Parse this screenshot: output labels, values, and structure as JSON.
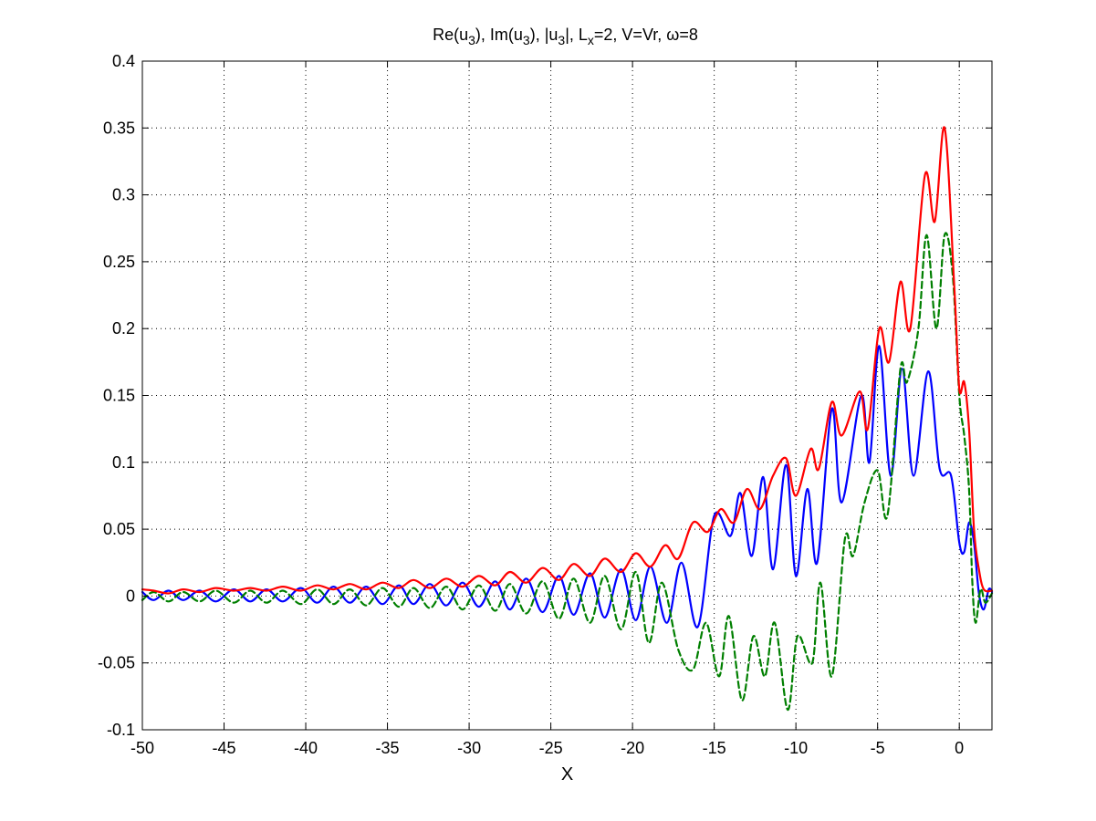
{
  "chart_data": {
    "type": "line",
    "title": {
      "parts": [
        {
          "t": "Re(u"
        },
        {
          "t": "3",
          "sub": true
        },
        {
          "t": "), Im(u"
        },
        {
          "t": "3",
          "sub": true
        },
        {
          "t": "), |u"
        },
        {
          "t": "3",
          "sub": true
        },
        {
          "t": "|, L"
        },
        {
          "t": "x",
          "sub": true
        },
        {
          "t": "=2,  V=Vr, ω=8"
        }
      ]
    },
    "xlabel": "X",
    "ylabel": "",
    "xlim": [
      -50,
      2
    ],
    "ylim": [
      -0.1,
      0.4
    ],
    "grid": true,
    "x_ticks": [
      -50,
      -45,
      -40,
      -35,
      -30,
      -25,
      -20,
      -15,
      -10,
      -5,
      0
    ],
    "x_tick_labels": [
      "-50",
      "-45",
      "-40",
      "-35",
      "-30",
      "-25",
      "-20",
      "-15",
      "-10",
      "-5",
      "0"
    ],
    "y_ticks": [
      -0.1,
      -0.05,
      0,
      0.05,
      0.1,
      0.15,
      0.2,
      0.25,
      0.3,
      0.35,
      0.4
    ],
    "y_tick_labels": [
      "-0.1",
      "-0.05",
      "0",
      "0.05",
      "0.1",
      "0.15",
      "0.2",
      "0.25",
      "0.3",
      "0.35",
      "0.4"
    ],
    "series": [
      {
        "color": "#0000ff",
        "style": "solid",
        "points": [
          [
            -50,
            0.003
          ],
          [
            -49.3,
            -0.003
          ],
          [
            -48.4,
            0.004
          ],
          [
            -47.5,
            -0.003
          ],
          [
            -46.5,
            0.004
          ],
          [
            -45.5,
            -0.004
          ],
          [
            -44.4,
            0.005
          ],
          [
            -43.4,
            -0.004
          ],
          [
            -42.4,
            0.005
          ],
          [
            -41.4,
            -0.004
          ],
          [
            -40.3,
            0.006
          ],
          [
            -39.3,
            -0.005
          ],
          [
            -38.3,
            0.007
          ],
          [
            -37.3,
            -0.005
          ],
          [
            -36.3,
            0.007
          ],
          [
            -35.3,
            -0.006
          ],
          [
            -34.3,
            0.008
          ],
          [
            -33.4,
            -0.006
          ],
          [
            -32.4,
            0.009
          ],
          [
            -31.4,
            -0.007
          ],
          [
            -30.4,
            0.01
          ],
          [
            -29.4,
            -0.008
          ],
          [
            -28.4,
            0.011
          ],
          [
            -27.5,
            -0.01
          ],
          [
            -26.5,
            0.013
          ],
          [
            -25.5,
            -0.012
          ],
          [
            -24.5,
            0.015
          ],
          [
            -23.6,
            -0.014
          ],
          [
            -22.6,
            0.017
          ],
          [
            -21.7,
            -0.016
          ],
          [
            -20.7,
            0.02
          ],
          [
            -19.8,
            -0.018
          ],
          [
            -18.9,
            0.022
          ],
          [
            -17.9,
            -0.02
          ],
          [
            -17.0,
            0.025
          ],
          [
            -16.0,
            -0.023
          ],
          [
            -15.0,
            0.06
          ],
          [
            -14.0,
            0.045
          ],
          [
            -13.4,
            0.077
          ],
          [
            -12.7,
            0.03
          ],
          [
            -12.0,
            0.089
          ],
          [
            -11.4,
            0.02
          ],
          [
            -10.6,
            0.098
          ],
          [
            -10.0,
            0.015
          ],
          [
            -9.3,
            0.08
          ],
          [
            -8.7,
            0.025
          ],
          [
            -7.8,
            0.14
          ],
          [
            -7.2,
            0.07
          ],
          [
            -6.0,
            0.15
          ],
          [
            -5.5,
            0.1
          ],
          [
            -4.9,
            0.187
          ],
          [
            -4.2,
            0.09
          ],
          [
            -3.5,
            0.17
          ],
          [
            -2.8,
            0.09
          ],
          [
            -1.9,
            0.168
          ],
          [
            -1.2,
            0.095
          ],
          [
            -0.5,
            0.09
          ],
          [
            0,
            0.04
          ],
          [
            0.3,
            0.033
          ],
          [
            0.6,
            0.055
          ],
          [
            0.9,
            0.04
          ],
          [
            1.2,
            0.002
          ],
          [
            1.5,
            -0.01
          ],
          [
            1.8,
            0.005
          ],
          [
            2,
            0.003
          ]
        ]
      },
      {
        "color": "#007f00",
        "style": "dashed",
        "points": [
          [
            -50,
            -0.003
          ],
          [
            -49.3,
            0.003
          ],
          [
            -48.4,
            -0.004
          ],
          [
            -47.5,
            0.003
          ],
          [
            -46.5,
            -0.004
          ],
          [
            -45.5,
            0.004
          ],
          [
            -44.4,
            -0.005
          ],
          [
            -43.4,
            0.004
          ],
          [
            -42.4,
            -0.005
          ],
          [
            -41.4,
            0.004
          ],
          [
            -40.3,
            -0.006
          ],
          [
            -39.3,
            0.005
          ],
          [
            -38.3,
            -0.006
          ],
          [
            -37.3,
            0.005
          ],
          [
            -36.3,
            -0.007
          ],
          [
            -35.3,
            0.006
          ],
          [
            -34.3,
            -0.008
          ],
          [
            -33.4,
            0.006
          ],
          [
            -32.4,
            -0.009
          ],
          [
            -31.4,
            0.007
          ],
          [
            -30.4,
            -0.01
          ],
          [
            -29.4,
            0.008
          ],
          [
            -28.4,
            -0.011
          ],
          [
            -27.5,
            0.009
          ],
          [
            -26.5,
            -0.013
          ],
          [
            -25.5,
            0.011
          ],
          [
            -24.5,
            -0.017
          ],
          [
            -23.6,
            0.013
          ],
          [
            -22.6,
            -0.02
          ],
          [
            -21.7,
            0.015
          ],
          [
            -20.7,
            -0.025
          ],
          [
            -19.8,
            0.018
          ],
          [
            -19.0,
            -0.035
          ],
          [
            -18.2,
            0.01
          ],
          [
            -17.2,
            -0.04
          ],
          [
            -16.3,
            -0.055
          ],
          [
            -15.5,
            -0.02
          ],
          [
            -14.7,
            -0.06
          ],
          [
            -14.1,
            -0.015
          ],
          [
            -13.3,
            -0.078
          ],
          [
            -12.6,
            -0.03
          ],
          [
            -11.9,
            -0.06
          ],
          [
            -11.3,
            -0.02
          ],
          [
            -10.5,
            -0.085
          ],
          [
            -9.9,
            -0.03
          ],
          [
            -9.0,
            -0.05
          ],
          [
            -8.5,
            0.01
          ],
          [
            -7.8,
            -0.06
          ],
          [
            -7.0,
            0.043
          ],
          [
            -6.5,
            0.03
          ],
          [
            -5.8,
            0.07
          ],
          [
            -5.0,
            0.094
          ],
          [
            -4.4,
            0.06
          ],
          [
            -3.6,
            0.17
          ],
          [
            -3.2,
            0.16
          ],
          [
            -2.5,
            0.2
          ],
          [
            -2.0,
            0.27
          ],
          [
            -1.4,
            0.2
          ],
          [
            -0.9,
            0.27
          ],
          [
            -0.4,
            0.24
          ],
          [
            0,
            0.15
          ],
          [
            0.3,
            0.12
          ],
          [
            0.6,
            0.08
          ],
          [
            0.8,
            0.01
          ],
          [
            1.0,
            -0.02
          ],
          [
            1.3,
            0.005
          ],
          [
            1.6,
            -0.005
          ],
          [
            2,
            0.002
          ]
        ]
      },
      {
        "color": "#ff0000",
        "style": "solid",
        "points": [
          [
            -50,
            0.005
          ],
          [
            -49.3,
            0.004
          ],
          [
            -48.4,
            0.002
          ],
          [
            -47.5,
            0.005
          ],
          [
            -46.5,
            0.003
          ],
          [
            -45.5,
            0.006
          ],
          [
            -44.4,
            0.004
          ],
          [
            -43.4,
            0.006
          ],
          [
            -42.4,
            0.004
          ],
          [
            -41.4,
            0.007
          ],
          [
            -40.3,
            0.004
          ],
          [
            -39.3,
            0.008
          ],
          [
            -38.3,
            0.005
          ],
          [
            -37.3,
            0.009
          ],
          [
            -36.3,
            0.005
          ],
          [
            -35.3,
            0.01
          ],
          [
            -34.3,
            0.006
          ],
          [
            -33.4,
            0.012
          ],
          [
            -32.4,
            0.006
          ],
          [
            -31.4,
            0.013
          ],
          [
            -30.4,
            0.007
          ],
          [
            -29.4,
            0.015
          ],
          [
            -28.4,
            0.008
          ],
          [
            -27.5,
            0.018
          ],
          [
            -26.5,
            0.01
          ],
          [
            -25.5,
            0.021
          ],
          [
            -24.5,
            0.012
          ],
          [
            -23.6,
            0.024
          ],
          [
            -22.6,
            0.015
          ],
          [
            -21.7,
            0.028
          ],
          [
            -20.7,
            0.018
          ],
          [
            -19.8,
            0.032
          ],
          [
            -18.9,
            0.022
          ],
          [
            -18.0,
            0.038
          ],
          [
            -17.2,
            0.028
          ],
          [
            -16.3,
            0.055
          ],
          [
            -15.4,
            0.048
          ],
          [
            -14.6,
            0.065
          ],
          [
            -13.8,
            0.055
          ],
          [
            -13.0,
            0.08
          ],
          [
            -12.2,
            0.065
          ],
          [
            -11.4,
            0.09
          ],
          [
            -10.6,
            0.103
          ],
          [
            -10.0,
            0.075
          ],
          [
            -9.1,
            0.11
          ],
          [
            -8.6,
            0.095
          ],
          [
            -7.8,
            0.145
          ],
          [
            -7.2,
            0.12
          ],
          [
            -6.1,
            0.153
          ],
          [
            -5.6,
            0.125
          ],
          [
            -4.9,
            0.2
          ],
          [
            -4.3,
            0.175
          ],
          [
            -3.6,
            0.235
          ],
          [
            -3.0,
            0.2
          ],
          [
            -2.1,
            0.315
          ],
          [
            -1.5,
            0.28
          ],
          [
            -0.9,
            0.35
          ],
          [
            -0.3,
            0.23
          ],
          [
            0,
            0.155
          ],
          [
            0.3,
            0.16
          ],
          [
            0.6,
            0.125
          ],
          [
            0.9,
            0.05
          ],
          [
            1.2,
            0.02
          ],
          [
            1.5,
            0.005
          ],
          [
            2,
            0.004
          ]
        ]
      }
    ]
  }
}
